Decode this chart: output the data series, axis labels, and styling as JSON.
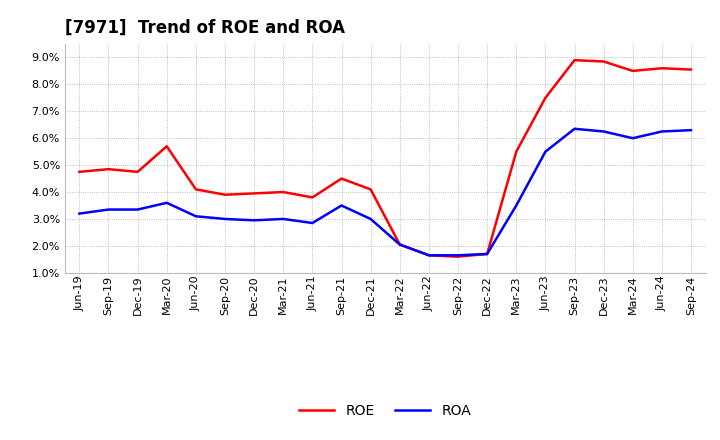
{
  "title": "[7971]  Trend of ROE and ROA",
  "labels": [
    "Jun-19",
    "Sep-19",
    "Dec-19",
    "Mar-20",
    "Jun-20",
    "Sep-20",
    "Dec-20",
    "Mar-21",
    "Jun-21",
    "Sep-21",
    "Dec-21",
    "Mar-22",
    "Jun-22",
    "Sep-22",
    "Dec-22",
    "Mar-23",
    "Jun-23",
    "Sep-23",
    "Dec-23",
    "Mar-24",
    "Jun-24",
    "Sep-24"
  ],
  "roe": [
    4.75,
    4.85,
    4.75,
    5.7,
    4.1,
    3.9,
    3.95,
    4.0,
    3.8,
    4.5,
    4.1,
    2.05,
    1.65,
    1.6,
    1.7,
    5.5,
    7.5,
    8.9,
    8.85,
    8.5,
    8.6,
    8.55
  ],
  "roa": [
    3.2,
    3.35,
    3.35,
    3.6,
    3.1,
    3.0,
    2.95,
    3.0,
    2.85,
    3.5,
    3.0,
    2.05,
    1.65,
    1.65,
    1.7,
    3.5,
    5.5,
    6.35,
    6.25,
    6.0,
    6.25,
    6.3
  ],
  "ylim": [
    1.0,
    9.5
  ],
  "yticks": [
    1.0,
    2.0,
    3.0,
    4.0,
    5.0,
    6.0,
    7.0,
    8.0,
    9.0
  ],
  "roe_color": "#ff0000",
  "roa_color": "#0000ff",
  "bg_color": "#ffffff",
  "plot_bg_color": "#ffffff",
  "grid_color": "#aaaaaa",
  "title_fontsize": 12,
  "axis_fontsize": 8,
  "legend_fontsize": 10,
  "linewidth": 1.8
}
